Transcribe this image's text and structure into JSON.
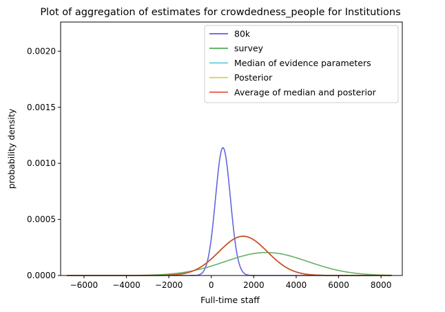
{
  "chart_data": {
    "type": "line",
    "title": "Plot of aggregation of estimates for crowdedness_people for Institutions",
    "xlabel": "Full-time staff",
    "ylabel": "probability density",
    "xlim": [
      -7100,
      9000
    ],
    "ylim": [
      0,
      0.00226
    ],
    "x_ticks": [
      -6000,
      -4000,
      -2000,
      0,
      2000,
      4000,
      6000,
      8000
    ],
    "x_tick_labels": [
      "−6000",
      "−4000",
      "−2000",
      "0",
      "2000",
      "4000",
      "6000",
      "8000"
    ],
    "y_ticks": [
      0,
      0.0005,
      0.001,
      0.0015,
      0.002
    ],
    "y_tick_labels": [
      "0.0000",
      "0.0005",
      "0.0010",
      "0.0015",
      "0.0020"
    ],
    "x_range": [
      -6800,
      8500
    ],
    "grid": false,
    "legend_position": "top-right",
    "series": [
      {
        "name": "80k",
        "color": "#5b5be0",
        "mean": 550,
        "std": 350,
        "peak": 0.00114
      },
      {
        "name": "survey",
        "color": "#5cab5c",
        "mean": 2600,
        "std": 1950,
        "peak": 0.000205
      },
      {
        "name": "Median of evidence parameters",
        "color": "#5ed0d0",
        "mean": 1500,
        "std": 1140,
        "peak": 0.00035
      },
      {
        "name": "Posterior",
        "color": "#d4cc5a",
        "mean": 1500,
        "std": 1140,
        "peak": 0.00035
      },
      {
        "name": "Average of median and posterior",
        "color": "#ef5a4e",
        "mean": 1500,
        "std": 1140,
        "peak": 0.00035
      }
    ],
    "overlap_color": "#c8542a"
  }
}
